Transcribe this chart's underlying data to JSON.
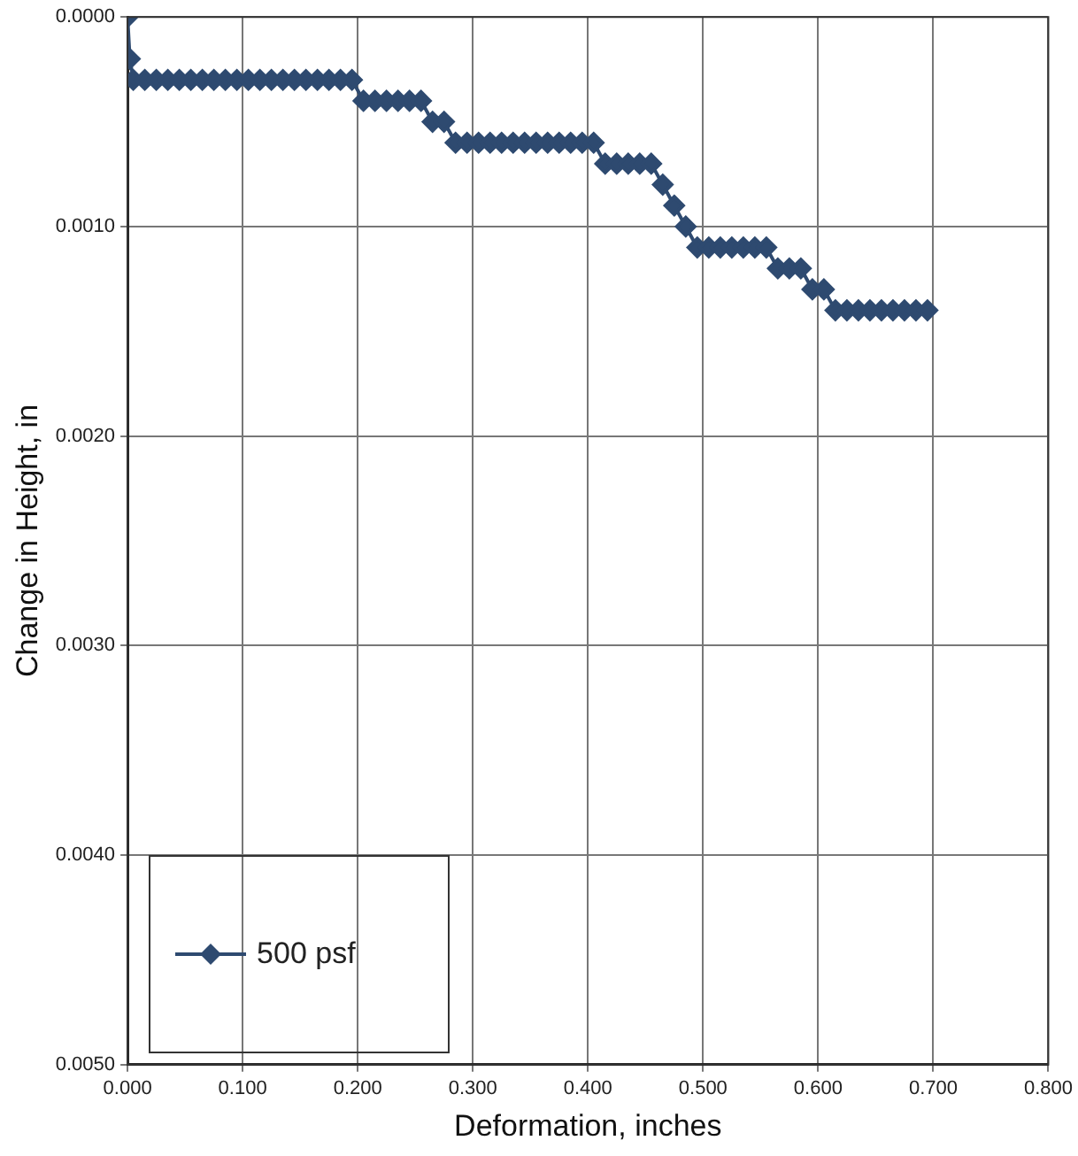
{
  "chart_data": {
    "type": "line",
    "xlabel": "Deformation, inches",
    "ylabel": "Change in Height, in",
    "xlim": [
      0,
      0.8
    ],
    "ylim": [
      0.005,
      0
    ],
    "xticks": [
      {
        "value": 0,
        "label": "0.000"
      },
      {
        "value": 0.1,
        "label": "0.100"
      },
      {
        "value": 0.2,
        "label": "0.200"
      },
      {
        "value": 0.3,
        "label": "0.300"
      },
      {
        "value": 0.4,
        "label": "0.400"
      },
      {
        "value": 0.5,
        "label": "0.500"
      },
      {
        "value": 0.6,
        "label": "0.600"
      },
      {
        "value": 0.7,
        "label": "0.700"
      },
      {
        "value": 0.8,
        "label": "0.800"
      }
    ],
    "yticks": [
      {
        "value": 0,
        "label": "0.0000"
      },
      {
        "value": 0.001,
        "label": "0.0010"
      },
      {
        "value": 0.002,
        "label": "0.0020"
      },
      {
        "value": 0.003,
        "label": "0.0030"
      },
      {
        "value": 0.004,
        "label": "0.0040"
      },
      {
        "value": 0.005,
        "label": "0.0050"
      }
    ],
    "grid": true,
    "legend": "bottom left",
    "marker": "diamond",
    "line_style": "solid",
    "series": [
      {
        "name": "500 psf",
        "color": "#2e4a70",
        "x": [
          0,
          0.002,
          0.005,
          0.015,
          0.025,
          0.035,
          0.045,
          0.055,
          0.065,
          0.075,
          0.085,
          0.095,
          0.105,
          0.115,
          0.125,
          0.135,
          0.145,
          0.155,
          0.165,
          0.175,
          0.185,
          0.195,
          0.205,
          0.215,
          0.225,
          0.235,
          0.245,
          0.255,
          0.265,
          0.275,
          0.285,
          0.295,
          0.305,
          0.315,
          0.325,
          0.335,
          0.345,
          0.355,
          0.365,
          0.375,
          0.385,
          0.395,
          0.405,
          0.415,
          0.425,
          0.435,
          0.445,
          0.455,
          0.465,
          0.475,
          0.485,
          0.495,
          0.505,
          0.515,
          0.525,
          0.535,
          0.545,
          0.555,
          0.565,
          0.575,
          0.585,
          0.595,
          0.605,
          0.615,
          0.625,
          0.635,
          0.645,
          0.655,
          0.665,
          0.675,
          0.685,
          0.695
        ],
        "values": [
          0,
          0.0002,
          0.0003,
          0.0003,
          0.0003,
          0.0003,
          0.0003,
          0.0003,
          0.0003,
          0.0003,
          0.0003,
          0.0003,
          0.0003,
          0.0003,
          0.0003,
          0.0003,
          0.0003,
          0.0003,
          0.0003,
          0.0003,
          0.0003,
          0.0003,
          0.0004,
          0.0004,
          0.0004,
          0.0004,
          0.0004,
          0.0004,
          0.0005,
          0.0005,
          0.0006,
          0.0006,
          0.0006,
          0.0006,
          0.0006,
          0.0006,
          0.0006,
          0.0006,
          0.0006,
          0.0006,
          0.0006,
          0.0006,
          0.0006,
          0.0007,
          0.0007,
          0.0007,
          0.0007,
          0.0007,
          0.0008,
          0.0009,
          0.001,
          0.0011,
          0.0011,
          0.0011,
          0.0011,
          0.0011,
          0.0011,
          0.0011,
          0.0012,
          0.0012,
          0.0012,
          0.0013,
          0.0013,
          0.0014,
          0.0014,
          0.0014,
          0.0014,
          0.0014,
          0.0014,
          0.0014,
          0.0014,
          0.0014
        ]
      }
    ]
  }
}
